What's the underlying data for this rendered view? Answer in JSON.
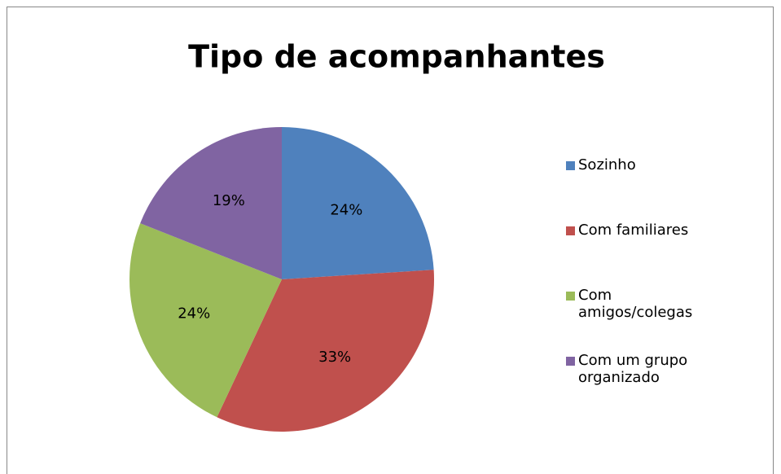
{
  "chart_data": {
    "type": "pie",
    "title": "Tipo de acompanhantes",
    "categories": [
      "Sozinho",
      "Com familiares",
      "Com amigos/colegas",
      "Com um grupo organizado"
    ],
    "values": [
      24,
      33,
      24,
      19
    ],
    "value_labels": [
      "24%",
      "33%",
      "24%",
      "19%"
    ],
    "colors": [
      "#4F81BD",
      "#C0504D",
      "#9BBB59",
      "#8064A2"
    ],
    "legend": "right"
  }
}
